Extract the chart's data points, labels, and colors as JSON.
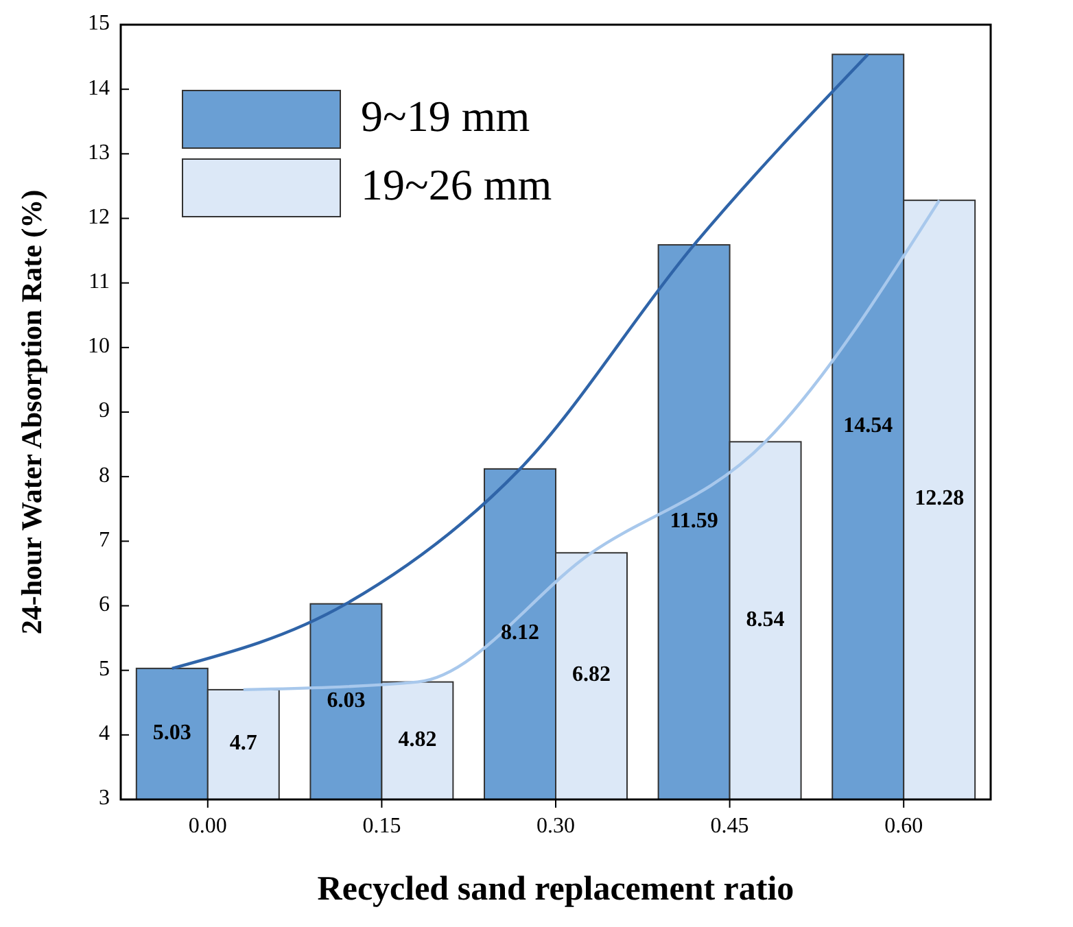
{
  "chart_data": {
    "type": "bar",
    "xlabel": "Recycled sand replacement ratio",
    "ylabel": "24-hour Water Absorption Rate (%)",
    "categories": [
      "0.00",
      "0.15",
      "0.30",
      "0.45",
      "0.60"
    ],
    "ylim": [
      3,
      15
    ],
    "yticks": [
      3,
      4,
      5,
      6,
      7,
      8,
      9,
      10,
      11,
      12,
      13,
      14,
      15
    ],
    "grid": false,
    "legend": "top left",
    "series": [
      {
        "name": "9~19 mm",
        "color": "#6a9fd4",
        "values": [
          5.03,
          6.03,
          8.12,
          11.59,
          14.54
        ],
        "value_labels": [
          "5.03",
          "6.03",
          "8.12",
          "11.59",
          "14.54"
        ]
      },
      {
        "name": "19~26 mm",
        "color": "#dce8f7",
        "values": [
          4.7,
          4.82,
          6.82,
          8.54,
          12.28
        ],
        "value_labels": [
          "4.7",
          "4.82",
          "6.82",
          "8.54",
          "12.28"
        ]
      },
      {
        "type": "line",
        "color": "#2f64a8",
        "values": [
          5.03,
          6.03,
          8.12,
          11.59,
          14.54
        ]
      },
      {
        "type": "line",
        "color": "#a8c8ec",
        "values": [
          4.7,
          4.82,
          6.82,
          8.54,
          12.28
        ]
      }
    ]
  }
}
